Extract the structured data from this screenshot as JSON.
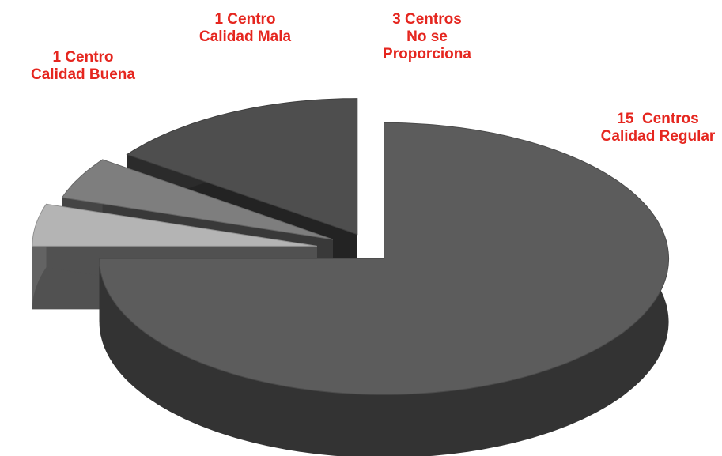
{
  "chart_data": {
    "type": "pie3d",
    "categories": [
      "Calidad Regular",
      "Calidad Buena",
      "Calidad Mala",
      "No se Proporciona"
    ],
    "values": [
      15,
      1,
      1,
      3
    ],
    "value_labels": [
      "15  Centros",
      "1 Centro",
      "1 Centro",
      "3 Centros"
    ],
    "colors": [
      "#5c5c5c",
      "#b4b4b4",
      "#7e7e7e",
      "#4e4e4e"
    ]
  }
}
